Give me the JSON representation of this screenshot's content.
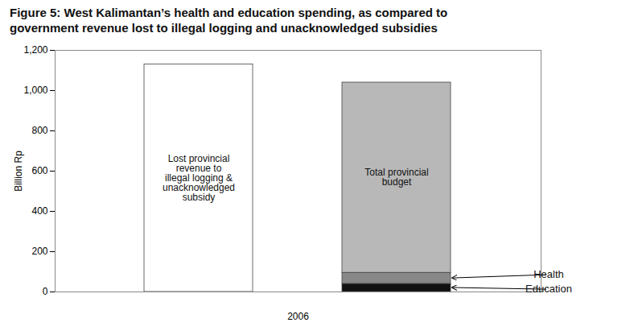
{
  "chart_data": {
    "type": "bar",
    "title": "Figure 5: West Kalimantan’s health and education spending, as compared to\ngovernment revenue lost to illegal logging and unacknowledged subsidies",
    "categories": [
      "Lost provincial\nrevenue to\nillegal logging &\nunacknowledged\nsubsidy",
      "Total provincial\nbudget"
    ],
    "series": [
      {
        "values": [
          1130,
          null
        ],
        "color": "#ffffff"
      },
      {
        "name": "Education",
        "values": [
          null,
          40
        ],
        "color": "#111111"
      },
      {
        "name": "Health",
        "values": [
          null,
          55
        ],
        "color": "#888888"
      },
      {
        "values": [
          null,
          945
        ],
        "color": "#b8b8b8"
      }
    ],
    "stacked": true,
    "xlabel": "2006",
    "ylabel": "Billion Rp",
    "ylim": [
      0,
      1200
    ],
    "yticks": [
      0,
      200,
      400,
      600,
      800,
      {
        "value": 1000,
        "label": "1,000"
      },
      {
        "value": 1200,
        "label": "1,200"
      }
    ],
    "grid": false,
    "tick_labels": "y"
  }
}
